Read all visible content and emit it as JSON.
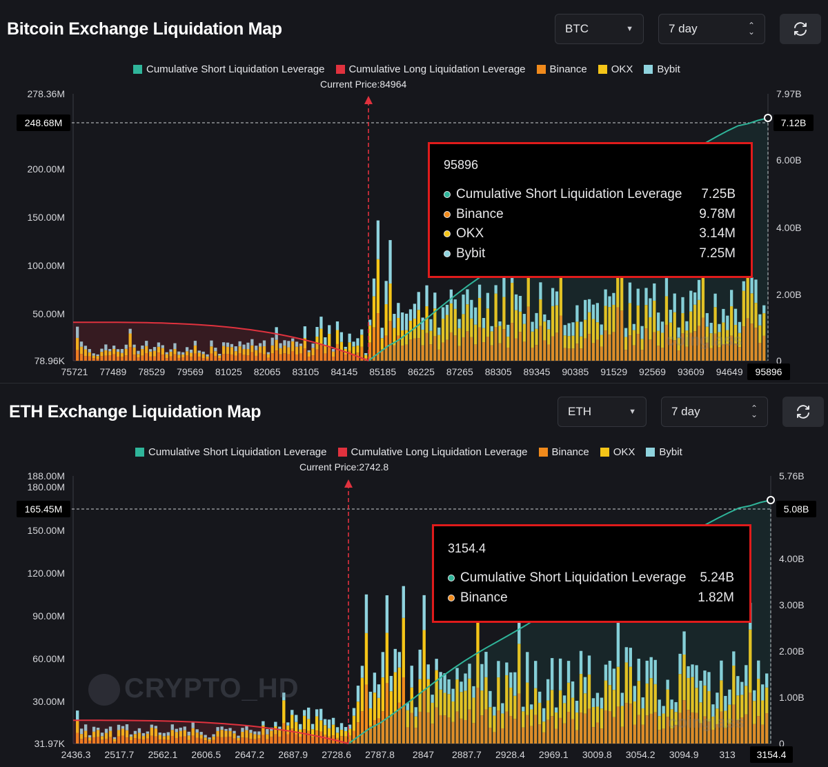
{
  "colors": {
    "short": "#2fb59a",
    "long": "#e0323e",
    "binance": "#f08a1c",
    "okx": "#f5c518",
    "bybit": "#8fd3de",
    "background": "#16171c",
    "tooltip_border": "#e01b1b"
  },
  "btc": {
    "title": "Bitcoin Exchange Liquidation Map",
    "coin_select": "BTC",
    "period_select": "7 day",
    "legend": [
      "Cumulative Short Liquidation Leverage",
      "Cumulative Long Liquidation Leverage",
      "Binance",
      "OKX",
      "Bybit"
    ],
    "current_price": "Current Price:84964",
    "watermark": "coinglass",
    "tooltip": {
      "price": "95896",
      "rows": [
        {
          "label": "Cumulative Short Liquidation Leverage",
          "value": "7.25B",
          "color": "#2fb59a"
        },
        {
          "label": "Binance",
          "value": "9.78M",
          "color": "#f08a1c"
        },
        {
          "label": "OKX",
          "value": "3.14M",
          "color": "#f5c518"
        },
        {
          "label": "Bybit",
          "value": "7.25M",
          "color": "#8fd3de"
        }
      ]
    },
    "chart_data": {
      "type": "bar",
      "title": "Bitcoin Exchange Liquidation Map",
      "xlabels": [
        "75721",
        "77489",
        "78529",
        "79569",
        "81025",
        "82065",
        "83105",
        "84145",
        "85185",
        "86225",
        "87265",
        "88305",
        "89345",
        "90385",
        "91529",
        "92569",
        "93609",
        "94649",
        "95896"
      ],
      "y_left_ticks": [
        "278.36M",
        "248.68M",
        "200.00M",
        "150.00M",
        "100.00M",
        "50.00M",
        "78.96K"
      ],
      "y_right_ticks": [
        "7.97B",
        "7.12B",
        "6.00B",
        "4.00B",
        "2.00B",
        "0"
      ],
      "y_left_range": [
        0.07896,
        278.36
      ],
      "y_right_range": [
        0,
        7.97
      ],
      "current_price": 84964,
      "crosshair_left": "248.68M",
      "crosshair_right": "7.12B",
      "crosshair_x": "95896",
      "long_cumulative_start_approx_B": 1.15,
      "short_cumulative_end_B": 7.25
    }
  },
  "eth": {
    "title": "ETH Exchange Liquidation Map",
    "coin_select": "ETH",
    "period_select": "7 day",
    "legend": [
      "Cumulative Short Liquidation Leverage",
      "Cumulative Long Liquidation Leverage",
      "Binance",
      "OKX",
      "Bybit"
    ],
    "current_price": "Current Price:2742.8",
    "watermark": "coinglass",
    "watermark2": "CRYPTO_HD",
    "tooltip": {
      "price": "3154.4",
      "rows": [
        {
          "label": "Cumulative Short Liquidation Leverage",
          "value": "5.24B",
          "color": "#2fb59a"
        },
        {
          "label": "Binance",
          "value": "1.82M",
          "color": "#f08a1c"
        }
      ]
    },
    "chart_data": {
      "type": "bar",
      "title": "ETH Exchange Liquidation Map",
      "xlabels": [
        "2436.3",
        "2517.7",
        "2562.1",
        "2606.5",
        "2647.2",
        "2687.9",
        "2728.6",
        "2787.8",
        "2847",
        "2887.7",
        "2928.4",
        "2969.1",
        "3009.8",
        "3054.2",
        "3094.9",
        "313",
        "3154.4"
      ],
      "y_left_ticks": [
        "188.00M",
        "180.00M",
        "165.45M",
        "150.00M",
        "120.00M",
        "90.00M",
        "60.00M",
        "30.00M",
        "31.97K"
      ],
      "y_right_ticks": [
        "5.76B",
        "5.08B",
        "4.00B",
        "3.00B",
        "2.00B",
        "1.00B",
        "0"
      ],
      "y_left_range": [
        0.03197,
        188
      ],
      "y_right_range": [
        0,
        5.76
      ],
      "current_price": 2742.8,
      "crosshair_left": "165.45M",
      "crosshair_right": "5.08B",
      "crosshair_x": "3154.4",
      "long_cumulative_start_approx_B": 0.5,
      "short_cumulative_end_B": 5.24
    }
  }
}
